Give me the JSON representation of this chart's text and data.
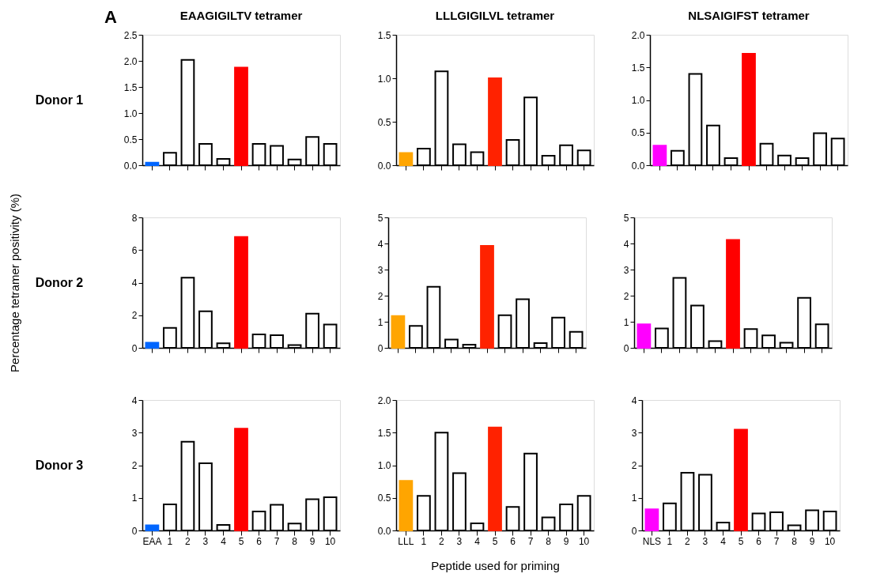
{
  "chart_data": [
    {
      "type": "bar",
      "title": "EAAGIGILTV tetramer",
      "annotations": [
        "A",
        "Donor 1"
      ],
      "tick_labels": "y",
      "categories": [
        null,
        null,
        null,
        null,
        null,
        null,
        null,
        null,
        null,
        null,
        null
      ],
      "values": [
        0.05,
        0.24,
        2.02,
        0.41,
        0.12,
        1.87,
        0.41,
        0.37,
        0.11,
        0.54,
        0.41
      ],
      "colors": [
        "#0066ff",
        "#ffffff",
        "#ffffff",
        "#ffffff",
        "#ffffff",
        "#ff0000",
        "#ffffff",
        "#ffffff",
        "#ffffff",
        "#ffffff",
        "#ffffff"
      ],
      "ylim": [
        0,
        2.5
      ],
      "yticks": [
        {
          "value": 0,
          "label": "0.0"
        },
        0.5,
        {
          "value": 1,
          "label": "1.0"
        },
        1.5,
        {
          "value": 2,
          "label": "2.0"
        },
        2.5
      ]
    },
    {
      "type": "bar",
      "title": "LLLGIGILVL tetramer",
      "tick_labels": "y",
      "categories": [
        null,
        null,
        null,
        null,
        null,
        null,
        null,
        null,
        null,
        null,
        null
      ],
      "values": [
        0.14,
        0.19,
        1.08,
        0.24,
        0.15,
        1.0,
        0.29,
        0.78,
        0.11,
        0.23,
        0.17
      ],
      "colors": [
        "#ffa500",
        "#ffffff",
        "#ffffff",
        "#ffffff",
        "#ffffff",
        "#ff2200",
        "#ffffff",
        "#ffffff",
        "#ffffff",
        "#ffffff",
        "#ffffff"
      ],
      "ylim": [
        0,
        1.5
      ],
      "yticks": [
        {
          "value": 0,
          "label": "0.0"
        },
        0.5,
        {
          "value": 1,
          "label": "1.0"
        },
        1.5
      ]
    },
    {
      "type": "bar",
      "title": "NLSAIGIFST tetramer",
      "tick_labels": "y",
      "categories": [
        null,
        null,
        null,
        null,
        null,
        null,
        null,
        null,
        null,
        null,
        null
      ],
      "values": [
        0.3,
        0.22,
        1.4,
        0.61,
        0.11,
        1.71,
        0.33,
        0.15,
        0.11,
        0.49,
        0.41
      ],
      "colors": [
        "#ff00ff",
        "#ffffff",
        "#ffffff",
        "#ffffff",
        "#ffffff",
        "#ff0000",
        "#ffffff",
        "#ffffff",
        "#ffffff",
        "#ffffff",
        "#ffffff"
      ],
      "ylim": [
        0,
        2.0
      ],
      "yticks": [
        {
          "value": 0,
          "label": "0.0"
        },
        0.5,
        {
          "value": 1,
          "label": "1.0"
        },
        1.5,
        {
          "value": 2,
          "label": "2.0"
        }
      ]
    },
    {
      "type": "bar",
      "ylabel": "Percentage tetramer positivity (%)",
      "annotations": [
        "Donor 2"
      ],
      "tick_labels": "y",
      "categories": [
        null,
        null,
        null,
        null,
        null,
        null,
        null,
        null,
        null,
        null,
        null
      ],
      "values": [
        0.32,
        1.23,
        4.3,
        2.24,
        0.28,
        6.8,
        0.83,
        0.77,
        0.17,
        2.1,
        1.43
      ],
      "colors": [
        "#0066ff",
        "#ffffff",
        "#ffffff",
        "#ffffff",
        "#ffffff",
        "#ff0000",
        "#ffffff",
        "#ffffff",
        "#ffffff",
        "#ffffff",
        "#ffffff"
      ],
      "ylim": [
        0,
        8
      ],
      "yticks": [
        0,
        2,
        4,
        6,
        8
      ]
    },
    {
      "type": "bar",
      "tick_labels": "y",
      "categories": [
        null,
        null,
        null,
        null,
        null,
        null,
        null,
        null,
        null,
        null,
        null
      ],
      "values": [
        1.22,
        0.84,
        2.34,
        0.32,
        0.12,
        3.91,
        1.25,
        1.86,
        0.18,
        1.16,
        0.61
      ],
      "colors": [
        "#ffa500",
        "#ffffff",
        "#ffffff",
        "#ffffff",
        "#ffffff",
        "#ff2200",
        "#ffffff",
        "#ffffff",
        "#ffffff",
        "#ffffff",
        "#ffffff"
      ],
      "ylim": [
        0,
        5
      ],
      "yticks": [
        0,
        1,
        2,
        3,
        4,
        5
      ]
    },
    {
      "type": "bar",
      "tick_labels": "y",
      "categories": [
        null,
        null,
        null,
        null,
        null,
        null,
        null,
        null,
        null,
        null,
        null
      ],
      "values": [
        0.9,
        0.74,
        2.68,
        1.62,
        0.26,
        4.14,
        0.72,
        0.48,
        0.2,
        1.92,
        0.9
      ],
      "colors": [
        "#ff00ff",
        "#ffffff",
        "#ffffff",
        "#ffffff",
        "#ffffff",
        "#ff0000",
        "#ffffff",
        "#ffffff",
        "#ffffff",
        "#ffffff",
        "#ffffff"
      ],
      "ylim": [
        0,
        5
      ],
      "yticks": [
        0,
        1,
        2,
        3,
        4,
        5
      ]
    },
    {
      "type": "bar",
      "annotations": [
        "Donor 3"
      ],
      "categories": [
        "EAA",
        "1",
        "2",
        "3",
        "4",
        "5",
        "6",
        "7",
        "8",
        "9",
        "10"
      ],
      "values": [
        0.16,
        0.8,
        2.72,
        2.06,
        0.17,
        3.12,
        0.58,
        0.79,
        0.21,
        0.96,
        1.02
      ],
      "colors": [
        "#0066ff",
        "#ffffff",
        "#ffffff",
        "#ffffff",
        "#ffffff",
        "#ff0000",
        "#ffffff",
        "#ffffff",
        "#ffffff",
        "#ffffff",
        "#ffffff"
      ],
      "ylim": [
        0,
        4
      ],
      "yticks": [
        0,
        1,
        2,
        3,
        4
      ]
    },
    {
      "type": "bar",
      "xlabel": "Peptide used for priming",
      "categories": [
        "LLL",
        "1",
        "2",
        "3",
        "4",
        "5",
        "6",
        "7",
        "8",
        "9",
        "10"
      ],
      "values": [
        0.76,
        0.53,
        1.5,
        0.88,
        0.11,
        1.58,
        0.36,
        1.18,
        0.2,
        0.4,
        0.53
      ],
      "colors": [
        "#ffa500",
        "#ffffff",
        "#ffffff",
        "#ffffff",
        "#ffffff",
        "#ff2200",
        "#ffffff",
        "#ffffff",
        "#ffffff",
        "#ffffff",
        "#ffffff"
      ],
      "ylim": [
        0,
        2.0
      ],
      "yticks": [
        {
          "value": 0,
          "label": "0.0"
        },
        0.5,
        {
          "value": 1,
          "label": "1.0"
        },
        1.5,
        {
          "value": 2,
          "label": "2.0"
        }
      ]
    },
    {
      "type": "bar",
      "categories": [
        "NLS",
        "1",
        "2",
        "3",
        "4",
        "5",
        "6",
        "7",
        "8",
        "9",
        "10"
      ],
      "values": [
        0.65,
        0.83,
        1.77,
        1.71,
        0.24,
        3.09,
        0.52,
        0.56,
        0.16,
        0.62,
        0.58
      ],
      "colors": [
        "#ff00ff",
        "#ffffff",
        "#ffffff",
        "#ffffff",
        "#ffffff",
        "#ff0000",
        "#ffffff",
        "#ffffff",
        "#ffffff",
        "#ffffff",
        "#ffffff"
      ],
      "ylim": [
        0,
        4
      ],
      "yticks": [
        0,
        1,
        2,
        3,
        4
      ]
    }
  ]
}
